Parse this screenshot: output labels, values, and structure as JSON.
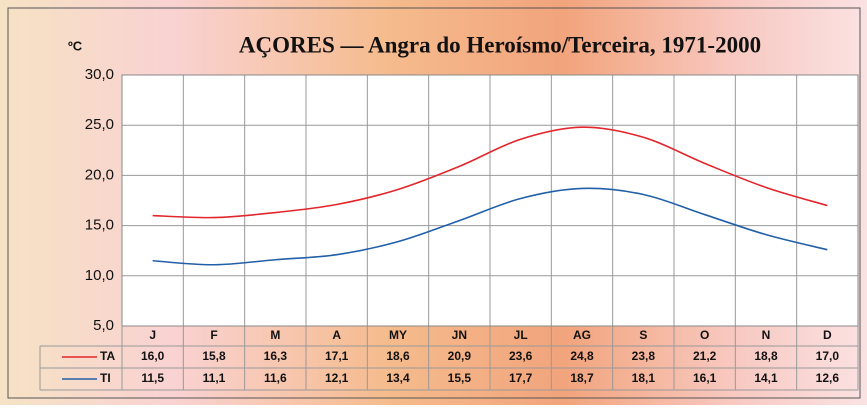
{
  "chart_data": {
    "type": "line",
    "title": "AÇORES — Angra do Heroísmo/Terceira, 1971-2000",
    "y_label": "ºC",
    "categories": [
      "J",
      "F",
      "M",
      "A",
      "MY",
      "JN",
      "JL",
      "AG",
      "S",
      "O",
      "N",
      "D"
    ],
    "series": [
      {
        "name": "TA",
        "color": "#e3262b",
        "values": [
          16.0,
          15.8,
          16.3,
          17.1,
          18.6,
          20.9,
          23.6,
          24.8,
          23.8,
          21.2,
          18.8,
          17.0
        ],
        "value_labels": [
          "16,0",
          "15,8",
          "16,3",
          "17,1",
          "18,6",
          "20,9",
          "23,6",
          "24,8",
          "23,8",
          "21,2",
          "18,8",
          "17,0"
        ]
      },
      {
        "name": "TI",
        "color": "#2160a8",
        "values": [
          11.5,
          11.1,
          11.6,
          12.1,
          13.4,
          15.5,
          17.7,
          18.7,
          18.1,
          16.1,
          14.1,
          12.6
        ],
        "value_labels": [
          "11,5",
          "11,1",
          "11,6",
          "12,1",
          "13,4",
          "15,5",
          "17,7",
          "18,7",
          "18,1",
          "16,1",
          "14,1",
          "12,6"
        ]
      }
    ],
    "ylim": [
      5,
      30
    ],
    "yticks": [
      {
        "value": 5,
        "label": "5,0"
      },
      {
        "value": 10,
        "label": "10,0"
      },
      {
        "value": 15,
        "label": "15,0"
      },
      {
        "value": 20,
        "label": "20,0"
      },
      {
        "value": 25,
        "label": "25,0"
      },
      {
        "value": 30,
        "label": "30,0"
      }
    ],
    "grid": true
  }
}
